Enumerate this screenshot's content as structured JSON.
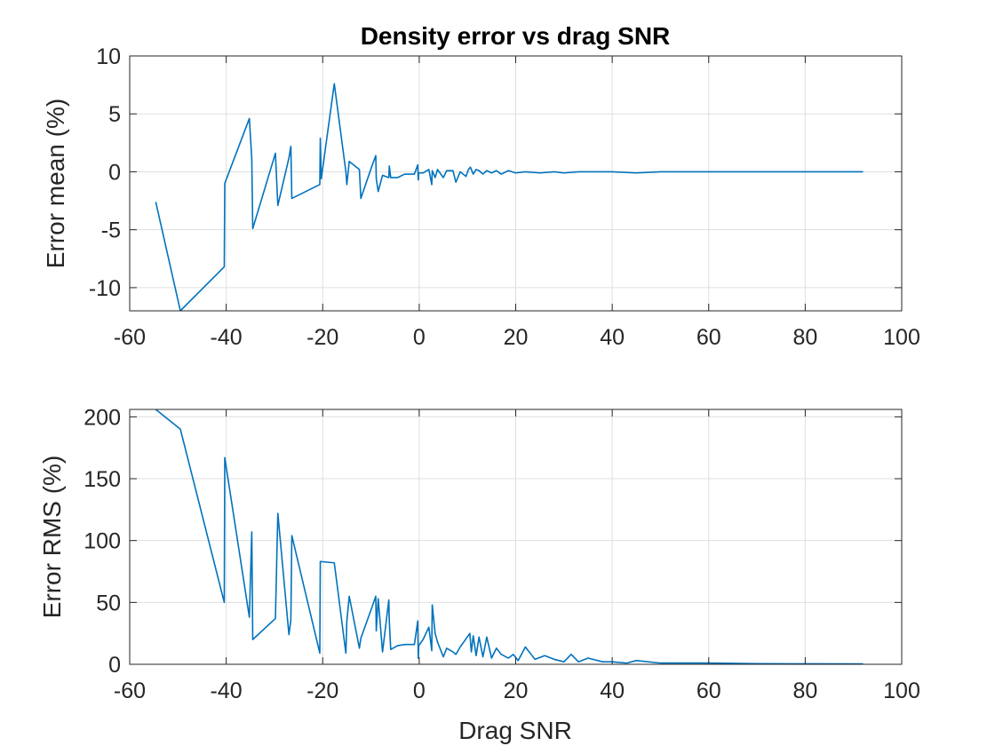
{
  "chart_data": [
    {
      "type": "line",
      "title": "Density error vs drag SNR",
      "xlabel": "",
      "ylabel": "Error mean (%)",
      "xlim": [
        -60,
        100
      ],
      "ylim": [
        -12,
        10
      ],
      "xticks": [
        -60,
        -40,
        -20,
        0,
        20,
        40,
        60,
        80,
        100
      ],
      "yticks": [
        -10,
        -5,
        0,
        5,
        10
      ],
      "grid": true,
      "line_color": "#0072BD",
      "series": [
        {
          "x": [
            -54.6,
            -49.5,
            -40.4,
            -40.3,
            -35.2,
            -34.7,
            -34.5,
            -29.8,
            -29.3,
            -27.0,
            -26.6,
            -26.4,
            -20.6,
            -20.5,
            -20.3,
            -17.6,
            -15.2,
            -15.0,
            -14.5,
            -12.4,
            -12.1,
            -9.8,
            -9.0,
            -8.9,
            -8.5,
            -7.6,
            -6.3,
            -6.2,
            -5.9,
            -4.5,
            -3.0,
            -1.0,
            -0.3,
            -0.2,
            -0.1,
            0.8,
            2.0,
            2.6,
            2.7,
            3.3,
            3.8,
            5.0,
            5.7,
            7.0,
            7.6,
            8.5,
            9.7,
            10.2,
            10.6,
            11.2,
            11.8,
            12.4,
            13.2,
            14.0,
            15.0,
            16.0,
            17.0,
            18.5,
            20.0,
            22.0,
            25.0,
            28.0,
            30.0,
            33.0,
            36.0,
            40.0,
            45.0,
            50.0,
            55.0,
            60.0,
            70.0,
            80.0,
            92.0
          ],
          "y": [
            -2.6,
            -12.0,
            -8.2,
            -1.0,
            4.6,
            1.1,
            -4.9,
            1.6,
            -2.9,
            1.2,
            2.2,
            -2.3,
            -1.1,
            2.9,
            -0.6,
            7.6,
            0.0,
            -1.1,
            0.9,
            0.2,
            -2.3,
            0.5,
            1.4,
            -0.6,
            -1.7,
            -0.3,
            -0.5,
            0.5,
            -0.5,
            -0.5,
            -0.2,
            -0.2,
            0.6,
            -0.7,
            -0.1,
            -0.1,
            0.2,
            -1.1,
            0.1,
            -0.5,
            0.2,
            -0.5,
            0.1,
            0.1,
            -0.9,
            0.0,
            -0.4,
            0.2,
            0.4,
            -0.2,
            0.2,
            0.1,
            -0.2,
            0.1,
            -0.1,
            0.1,
            -0.2,
            0.1,
            -0.1,
            0.0,
            -0.1,
            0.0,
            -0.1,
            0.0,
            0.0,
            0.0,
            -0.1,
            0.0,
            0.0,
            0.0,
            0.0,
            0.0,
            0.0
          ]
        }
      ]
    },
    {
      "type": "line",
      "title": "",
      "xlabel": "Drag SNR",
      "ylabel": "Error RMS (%)",
      "xlim": [
        -60,
        100
      ],
      "ylim": [
        0,
        206
      ],
      "xticks": [
        -60,
        -40,
        -20,
        0,
        20,
        40,
        60,
        80,
        100
      ],
      "yticks": [
        0,
        50,
        100,
        150,
        200
      ],
      "grid": true,
      "line_color": "#0072BD",
      "series": [
        {
          "x": [
            -54.6,
            -49.5,
            -40.4,
            -40.3,
            -35.2,
            -34.7,
            -34.5,
            -29.8,
            -29.3,
            -27.0,
            -26.6,
            -26.4,
            -20.6,
            -20.5,
            -20.3,
            -17.6,
            -15.2,
            -15.0,
            -14.5,
            -12.4,
            -12.1,
            -9.8,
            -9.0,
            -8.9,
            -8.5,
            -7.6,
            -6.3,
            -6.2,
            -5.9,
            -4.5,
            -3.0,
            -1.0,
            -0.3,
            -0.2,
            -0.1,
            0.8,
            2.0,
            2.6,
            2.7,
            3.3,
            3.8,
            5.0,
            5.7,
            7.0,
            7.6,
            8.5,
            10.5,
            10.8,
            11.2,
            11.8,
            12.4,
            13.2,
            14.0,
            15.0,
            16.0,
            17.0,
            18.5,
            19.5,
            20.5,
            22.0,
            24.0,
            26.0,
            28.0,
            30.0,
            31.5,
            33.0,
            35.0,
            38.0,
            40.0,
            43.0,
            45.0,
            50.0,
            55.0,
            60.0,
            70.0,
            80.0,
            92.0
          ],
          "y": [
            206,
            190,
            50,
            167,
            38,
            107,
            20,
            37,
            122,
            24,
            36,
            104,
            9,
            83,
            83,
            82,
            9,
            35,
            55,
            13,
            21,
            46,
            55,
            27,
            53,
            10,
            52,
            35,
            12,
            15,
            16,
            16,
            35,
            5,
            15,
            20,
            30,
            11,
            48,
            25,
            18,
            6,
            13,
            10,
            8,
            14,
            25,
            10,
            23,
            7,
            22,
            6,
            22,
            5,
            13,
            8,
            5,
            8,
            3,
            14,
            4,
            7,
            4,
            2,
            8,
            2,
            5,
            2,
            2,
            1,
            3,
            1,
            1,
            1,
            0.5,
            0.4,
            0.3
          ]
        }
      ]
    }
  ]
}
